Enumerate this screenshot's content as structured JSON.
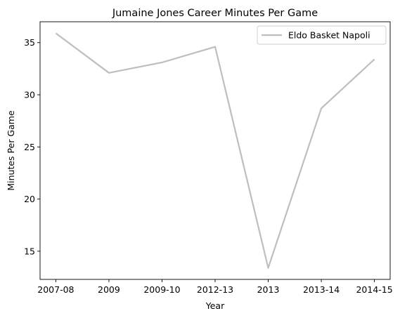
{
  "chart_data": {
    "type": "line",
    "title": "Jumaine Jones Career Minutes Per Game",
    "xlabel": "Year",
    "ylabel": "Minutes Per Game",
    "categories": [
      "2007-08",
      "2009",
      "2009-10",
      "2012-13",
      "2013",
      "2013-14",
      "2014-15"
    ],
    "series": [
      {
        "name": "Eldo Basket Napoli",
        "values": [
          35.9,
          32.1,
          33.1,
          34.6,
          13.4,
          28.7,
          33.4
        ],
        "color": "#bebebe"
      }
    ],
    "ylim": [
      12.3,
      37.0
    ],
    "yticks": [
      15,
      20,
      25,
      30,
      35
    ],
    "grid": false,
    "legend_position": "top-right"
  }
}
